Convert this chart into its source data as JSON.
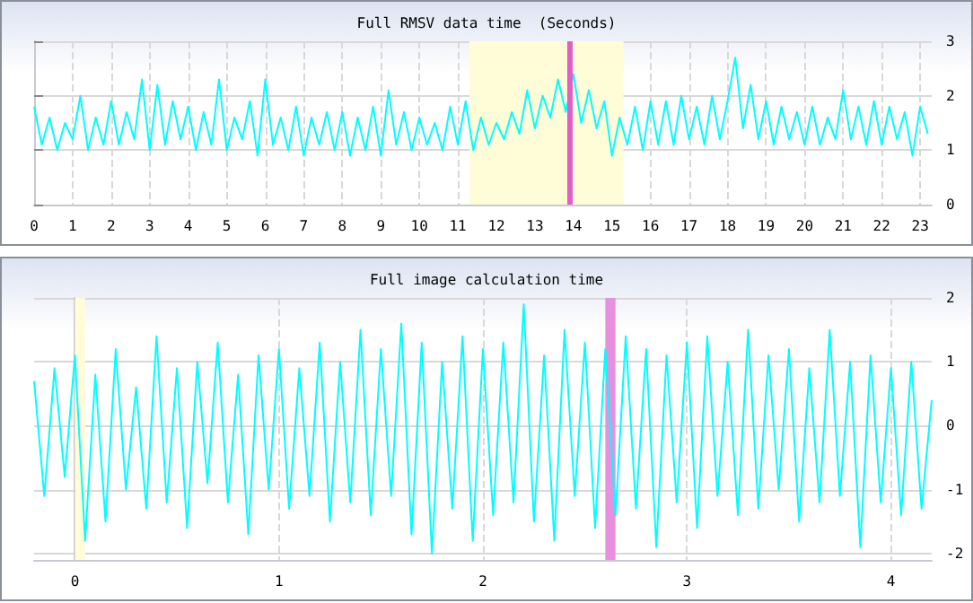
{
  "chart_data": [
    {
      "type": "line",
      "title": "Full RMSV data time  (Seconds)",
      "marker": "none",
      "grid": true,
      "xlim": [
        0,
        23.3
      ],
      "xticks": [
        0,
        1,
        2,
        3,
        4,
        5,
        6,
        7,
        8,
        9,
        10,
        11,
        12,
        13,
        14,
        15,
        16,
        17,
        18,
        19,
        20,
        21,
        22,
        23
      ],
      "ylim": [
        0,
        3
      ],
      "yticks": [
        0,
        1,
        2,
        3
      ],
      "bands": [
        {
          "axis": "x",
          "from": 11.3,
          "to": 15.3,
          "color": "#fffcd8"
        }
      ],
      "ref_lines": [
        {
          "axis": "x",
          "value": 13.9,
          "color": "#e060c8"
        }
      ],
      "series": [
        {
          "color": "#00ffff",
          "x": [
            0,
            0.2,
            0.4,
            0.6,
            0.8,
            1,
            1.2,
            1.4,
            1.6,
            1.8,
            2,
            2.2,
            2.4,
            2.6,
            2.8,
            3,
            3.2,
            3.4,
            3.6,
            3.8,
            4,
            4.2,
            4.4,
            4.6,
            4.8,
            5,
            5.2,
            5.4,
            5.6,
            5.8,
            6,
            6.2,
            6.4,
            6.6,
            6.8,
            7,
            7.2,
            7.4,
            7.6,
            7.8,
            8,
            8.2,
            8.4,
            8.6,
            8.8,
            9,
            9.2,
            9.4,
            9.6,
            9.8,
            10,
            10.2,
            10.4,
            10.6,
            10.8,
            11,
            11.2,
            11.4,
            11.6,
            11.8,
            12,
            12.2,
            12.4,
            12.6,
            12.8,
            13,
            13.2,
            13.4,
            13.6,
            13.8,
            14,
            14.2,
            14.4,
            14.6,
            14.8,
            15,
            15.2,
            15.4,
            15.6,
            15.8,
            16,
            16.2,
            16.4,
            16.6,
            16.8,
            17,
            17.2,
            17.4,
            17.6,
            17.8,
            18,
            18.2,
            18.4,
            18.6,
            18.8,
            19,
            19.2,
            19.4,
            19.6,
            19.8,
            20,
            20.2,
            20.4,
            20.6,
            20.8,
            21,
            21.2,
            21.4,
            21.6,
            21.8,
            22,
            22.2,
            22.4,
            22.6,
            22.8,
            23,
            23.2
          ],
          "values": [
            1.8,
            1.1,
            1.6,
            1.0,
            1.5,
            1.2,
            2.0,
            1.0,
            1.6,
            1.1,
            1.9,
            1.1,
            1.7,
            1.2,
            2.3,
            1.0,
            2.2,
            1.1,
            1.9,
            1.2,
            1.8,
            1.0,
            1.7,
            1.1,
            2.3,
            1.0,
            1.6,
            1.2,
            1.9,
            0.9,
            2.3,
            1.1,
            1.6,
            1.0,
            1.8,
            0.9,
            1.6,
            1.1,
            1.7,
            1.0,
            1.7,
            0.9,
            1.6,
            1.0,
            1.8,
            0.9,
            2.1,
            1.1,
            1.7,
            1.0,
            1.6,
            1.1,
            1.5,
            1.0,
            1.8,
            1.1,
            1.9,
            1.0,
            1.6,
            1.1,
            1.5,
            1.2,
            1.7,
            1.3,
            2.1,
            1.4,
            2.0,
            1.6,
            2.3,
            1.7,
            2.4,
            1.5,
            2.1,
            1.4,
            1.9,
            0.9,
            1.6,
            1.1,
            1.8,
            1.0,
            1.9,
            1.1,
            1.9,
            1.1,
            2.0,
            1.2,
            1.8,
            1.1,
            2.0,
            1.2,
            1.9,
            2.7,
            1.4,
            2.2,
            1.2,
            1.9,
            1.1,
            1.8,
            1.2,
            1.7,
            1.1,
            1.8,
            1.1,
            1.6,
            1.2,
            2.1,
            1.2,
            1.8,
            1.1,
            1.9,
            1.1,
            1.8,
            1.2,
            1.7,
            0.9,
            1.8,
            1.3
          ]
        }
      ]
    },
    {
      "type": "line",
      "title": "Full image calculation time",
      "marker": "none",
      "grid": true,
      "xlim": [
        -0.2,
        4.2
      ],
      "xticks": [
        0,
        1,
        2,
        3,
        4
      ],
      "ylim": [
        -2.1,
        2
      ],
      "yticks": [
        -2,
        -1,
        0,
        1,
        2
      ],
      "bands": [
        {
          "axis": "x",
          "from": 0,
          "to": 0.05,
          "color": "#fffcd8"
        },
        {
          "axis": "x",
          "from": 2.6,
          "to": 2.65,
          "color": "#e890e0"
        }
      ],
      "series": [
        {
          "color": "#00ffff",
          "x": [
            -0.2,
            -0.15,
            -0.1,
            -0.05,
            0,
            0.05,
            0.1,
            0.15,
            0.2,
            0.25,
            0.3,
            0.35,
            0.4,
            0.45,
            0.5,
            0.55,
            0.6,
            0.65,
            0.7,
            0.75,
            0.8,
            0.85,
            0.9,
            0.95,
            1,
            1.05,
            1.1,
            1.15,
            1.2,
            1.25,
            1.3,
            1.35,
            1.4,
            1.45,
            1.5,
            1.55,
            1.6,
            1.65,
            1.7,
            1.75,
            1.8,
            1.85,
            1.9,
            1.95,
            2,
            2.05,
            2.1,
            2.15,
            2.2,
            2.25,
            2.3,
            2.35,
            2.4,
            2.45,
            2.5,
            2.55,
            2.6,
            2.65,
            2.7,
            2.75,
            2.8,
            2.85,
            2.9,
            2.95,
            3,
            3.05,
            3.1,
            3.15,
            3.2,
            3.25,
            3.3,
            3.35,
            3.4,
            3.45,
            3.5,
            3.55,
            3.6,
            3.65,
            3.7,
            3.75,
            3.8,
            3.85,
            3.9,
            3.95,
            4,
            4.05,
            4.1,
            4.15,
            4.2
          ],
          "values": [
            0.7,
            -1.1,
            0.9,
            -0.8,
            1.1,
            -1.8,
            0.8,
            -1.5,
            1.2,
            -1.0,
            0.6,
            -1.3,
            1.4,
            -1.2,
            0.9,
            -1.6,
            1.0,
            -0.9,
            1.3,
            -1.2,
            0.8,
            -1.7,
            1.1,
            -1.0,
            1.2,
            -1.3,
            0.9,
            -1.1,
            1.3,
            -1.5,
            1.0,
            -1.2,
            1.5,
            -1.4,
            1.2,
            -1.1,
            1.6,
            -1.7,
            1.3,
            -2.0,
            1.0,
            -1.3,
            1.4,
            -1.8,
            1.2,
            -1.4,
            1.3,
            -1.2,
            1.9,
            -1.5,
            1.1,
            -1.8,
            1.5,
            -1.1,
            1.3,
            -1.6,
            1.2,
            -1.4,
            1.4,
            -1.3,
            1.2,
            -1.9,
            1.1,
            -1.2,
            1.3,
            -1.6,
            1.4,
            -1.1,
            1.0,
            -1.4,
            1.5,
            -1.3,
            1.1,
            -1.0,
            1.2,
            -1.5,
            0.9,
            -1.2,
            1.5,
            -1.1,
            1.0,
            -1.9,
            1.1,
            -1.2,
            0.9,
            -1.4,
            1.0,
            -1.3,
            0.4
          ]
        }
      ]
    }
  ]
}
